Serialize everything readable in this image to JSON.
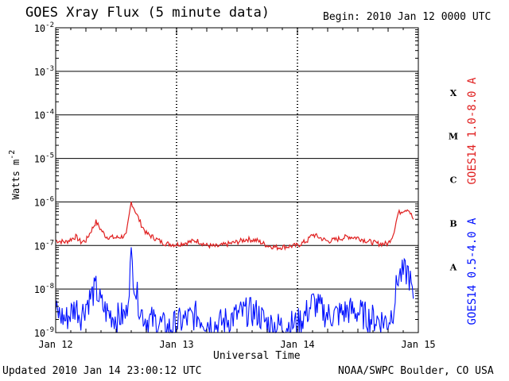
{
  "header": {
    "title": "GOES Xray Flux (5 minute data)",
    "begin": "Begin:  2010 Jan 12 0000 UTC"
  },
  "footer": {
    "updated": "Updated 2010 Jan 14 23:00:12 UTC",
    "credit": "NOAA/SWPC Boulder, CO USA"
  },
  "colors": {
    "long_channel": "#e02020",
    "short_channel": "#0010ff",
    "axes": "#000000"
  },
  "chart_data": {
    "type": "line",
    "title": "GOES Xray Flux (5 minute data)",
    "xlabel": "Universal Time",
    "ylabel": "Watts m-2",
    "y_scale": "log",
    "ylim": [
      1e-09,
      0.01
    ],
    "xlim": [
      "2010-01-12",
      "2010-01-15"
    ],
    "x_ticks": [
      "Jan 12",
      "Jan 13",
      "Jan 14",
      "Jan 15"
    ],
    "y_ticks": [
      {
        "base": "10",
        "exp": "-2"
      },
      {
        "base": "10",
        "exp": "-3"
      },
      {
        "base": "10",
        "exp": "-4"
      },
      {
        "base": "10",
        "exp": "-5"
      },
      {
        "base": "10",
        "exp": "-6"
      },
      {
        "base": "10",
        "exp": "-7"
      },
      {
        "base": "10",
        "exp": "-8"
      },
      {
        "base": "10",
        "exp": "-9"
      }
    ],
    "flare_classes": [
      "X",
      "M",
      "C",
      "B",
      "A"
    ],
    "grid": true,
    "legend_position": "right",
    "series": [
      {
        "name": "GOES14 1.0-8.0 A",
        "color": "#e02020",
        "x": [
          "2010-01-12 00:00",
          "2010-01-12 02:00",
          "2010-01-12 04:00",
          "2010-01-12 05:00",
          "2010-01-12 06:00",
          "2010-01-12 08:00",
          "2010-01-12 09:00",
          "2010-01-12 10:00",
          "2010-01-12 12:00",
          "2010-01-12 14:00",
          "2010-01-12 15:00",
          "2010-01-12 16:00",
          "2010-01-12 17:00",
          "2010-01-12 18:00",
          "2010-01-12 20:00",
          "2010-01-12 21:00",
          "2010-01-12 22:00",
          "2010-01-13 00:00",
          "2010-01-13 04:00",
          "2010-01-13 06:00",
          "2010-01-13 08:00",
          "2010-01-13 12:00",
          "2010-01-13 14:00",
          "2010-01-13 16:00",
          "2010-01-13 18:00",
          "2010-01-13 20:00",
          "2010-01-14 00:00",
          "2010-01-14 02:00",
          "2010-01-14 03:00",
          "2010-01-14 06:00",
          "2010-01-14 08:00",
          "2010-01-14 10:00",
          "2010-01-14 12:00",
          "2010-01-14 14:00",
          "2010-01-14 16:00",
          "2010-01-14 18:00",
          "2010-01-14 19:00",
          "2010-01-14 20:00",
          "2010-01-14 21:00",
          "2010-01-14 22:00",
          "2010-01-14 23:00"
        ],
        "values": [
          1.3e-07,
          1.2e-07,
          1.6e-07,
          1.2e-07,
          1.3e-07,
          3.5e-07,
          2.3e-07,
          1.6e-07,
          1.5e-07,
          1.7e-07,
          1e-06,
          5.5e-07,
          3e-07,
          1.9e-07,
          1.4e-07,
          1.2e-07,
          1.1e-07,
          1.05e-07,
          1.3e-07,
          1e-07,
          9.5e-08,
          1.2e-07,
          1.4e-07,
          1.3e-07,
          1e-07,
          9e-08,
          1e-07,
          1.3e-07,
          1.8e-07,
          1.25e-07,
          1.4e-07,
          1.6e-07,
          1.5e-07,
          1.25e-07,
          1.1e-07,
          1.1e-07,
          1.8e-07,
          5.5e-07,
          6.5e-07,
          7e-07,
          4e-07
        ]
      },
      {
        "name": "GOES14 0.5-4.0 A",
        "color": "#0010ff",
        "x": [
          "2010-01-12 00:00",
          "2010-01-12 02:00",
          "2010-01-12 04:00",
          "2010-01-12 05:00",
          "2010-01-12 06:00",
          "2010-01-12 08:00",
          "2010-01-12 09:00",
          "2010-01-12 10:00",
          "2010-01-12 12:00",
          "2010-01-12 14:00",
          "2010-01-12 15:00",
          "2010-01-12 16:00",
          "2010-01-12 17:00",
          "2010-01-12 18:00",
          "2010-01-12 20:00",
          "2010-01-12 21:00",
          "2010-01-12 22:00",
          "2010-01-13 00:00",
          "2010-01-13 04:00",
          "2010-01-13 06:00",
          "2010-01-13 08:00",
          "2010-01-13 12:00",
          "2010-01-13 14:00",
          "2010-01-13 16:00",
          "2010-01-13 18:00",
          "2010-01-13 20:00",
          "2010-01-14 00:00",
          "2010-01-14 02:00",
          "2010-01-14 03:00",
          "2010-01-14 06:00",
          "2010-01-14 08:00",
          "2010-01-14 10:00",
          "2010-01-14 12:00",
          "2010-01-14 14:00",
          "2010-01-14 16:00",
          "2010-01-14 18:00",
          "2010-01-14 19:00",
          "2010-01-14 20:00",
          "2010-01-14 21:00",
          "2010-01-14 22:00",
          "2010-01-14 23:00"
        ],
        "values": [
          3e-09,
          2e-09,
          4e-09,
          2.5e-09,
          4.5e-09,
          1e-08,
          4.5e-09,
          3e-09,
          2.2e-09,
          2.5e-09,
          5e-08,
          8e-09,
          3e-09,
          2e-09,
          1.8e-09,
          1.5e-09,
          1.2e-09,
          1.6e-09,
          2.5e-09,
          1.8e-09,
          1.5e-09,
          2.5e-09,
          3e-09,
          2.8e-09,
          1.6e-09,
          1.4e-09,
          1.6e-09,
          3e-09,
          5e-09,
          2.5e-09,
          2.6e-09,
          3.2e-09,
          3e-09,
          2.2e-09,
          2e-09,
          1.8e-09,
          3.5e-09,
          2e-08,
          2.2e-08,
          2.5e-08,
          6e-09
        ]
      }
    ]
  }
}
